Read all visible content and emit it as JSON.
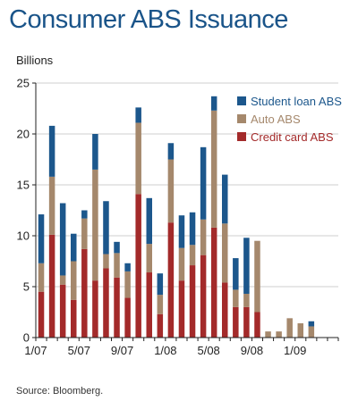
{
  "chart_data": {
    "type": "bar",
    "stacked": true,
    "title": "Consumer ABS Issuance",
    "ylabel": "Billions",
    "source": "Source: Bloomberg.",
    "ylim": [
      0,
      25
    ],
    "yticks": [
      0,
      5,
      10,
      15,
      20,
      25
    ],
    "x_tick_labels": [
      {
        "index": 0,
        "label": "1/07"
      },
      {
        "index": 4,
        "label": "5/07"
      },
      {
        "index": 8,
        "label": "9/07"
      },
      {
        "index": 12,
        "label": "1/08"
      },
      {
        "index": 16,
        "label": "5/08"
      },
      {
        "index": 20,
        "label": "9/08"
      },
      {
        "index": 24,
        "label": "1/09"
      }
    ],
    "categories": [
      "1/07",
      "2/07",
      "3/07",
      "4/07",
      "5/07",
      "6/07",
      "7/07",
      "8/07",
      "9/07",
      "10/07",
      "11/07",
      "12/07",
      "1/08",
      "2/08",
      "3/08",
      "4/08",
      "5/08",
      "6/08",
      "7/08",
      "8/08",
      "9/08",
      "10/08",
      "11/08",
      "12/08",
      "1/09",
      "2/09",
      "3/09",
      "4/09"
    ],
    "series": [
      {
        "name": "Credit card ABS",
        "color": "#a32a2a",
        "values": [
          4.5,
          10.1,
          5.2,
          3.7,
          8.7,
          5.6,
          6.8,
          5.9,
          3.9,
          14.1,
          6.4,
          2.3,
          11.3,
          5.6,
          7.1,
          8.1,
          10.8,
          5.4,
          3.0,
          3.0,
          2.5,
          0,
          0,
          0,
          0,
          0,
          0,
          0
        ]
      },
      {
        "name": "Auto ABS",
        "color": "#a5886c",
        "values": [
          2.8,
          5.7,
          0.9,
          3.8,
          3.0,
          10.9,
          1.4,
          2.4,
          2.6,
          7.0,
          2.8,
          1.9,
          6.2,
          3.2,
          2.0,
          3.5,
          11.5,
          5.8,
          1.7,
          1.3,
          7.0,
          0.6,
          0.6,
          1.9,
          1.4,
          1.1,
          0,
          0
        ]
      },
      {
        "name": "Student loan ABS",
        "color": "#1c578c",
        "values": [
          4.8,
          5.0,
          7.1,
          2.7,
          0.8,
          3.5,
          5.2,
          1.1,
          0.8,
          1.5,
          4.5,
          2.1,
          1.6,
          3.2,
          3.2,
          7.1,
          1.4,
          4.8,
          3.1,
          5.5,
          0,
          0,
          0,
          0,
          0,
          0.5,
          0,
          0
        ]
      }
    ],
    "legend": {
      "placement": "top-right",
      "order": [
        "Student loan ABS",
        "Auto ABS",
        "Credit card ABS"
      ]
    },
    "grid": "horizontal"
  }
}
